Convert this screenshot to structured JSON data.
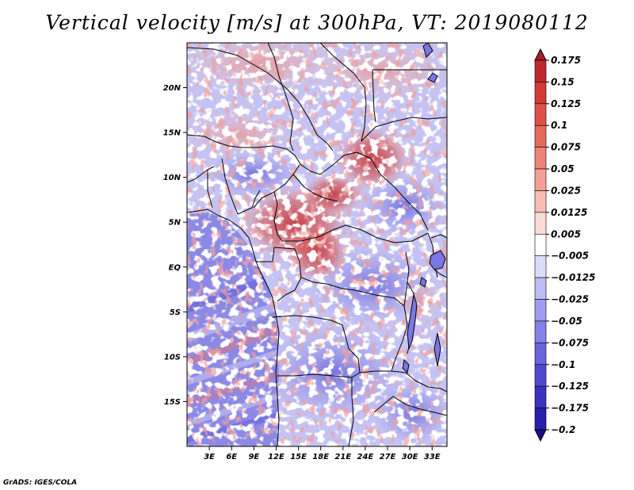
{
  "title": "Vertical velocity [m/s] at 300hPa, VT: 2019080112",
  "credit": "GrADS: IGES/COLA",
  "map": {
    "variable": "Vertical velocity",
    "units": "m/s",
    "level": "300hPa",
    "valid_time": "2019080112",
    "lon_range_deg": [
      0,
      35
    ],
    "lat_range_deg": [
      -20,
      25
    ],
    "lat_ticks": [
      {
        "label": "20N",
        "lat": 20
      },
      {
        "label": "15N",
        "lat": 15
      },
      {
        "label": "10N",
        "lat": 10
      },
      {
        "label": "5N",
        "lat": 5
      },
      {
        "label": "EQ",
        "lat": 0
      },
      {
        "label": "5S",
        "lat": -5
      },
      {
        "label": "10S",
        "lat": -10
      },
      {
        "label": "15S",
        "lat": -15
      }
    ],
    "lon_ticks": [
      {
        "label": "3E",
        "lon": 3
      },
      {
        "label": "6E",
        "lon": 6
      },
      {
        "label": "9E",
        "lon": 9
      },
      {
        "label": "12E",
        "lon": 12
      },
      {
        "label": "15E",
        "lon": 15
      },
      {
        "label": "18E",
        "lon": 18
      },
      {
        "label": "21E",
        "lon": 21
      },
      {
        "label": "24E",
        "lon": 24
      },
      {
        "label": "27E",
        "lon": 27
      },
      {
        "label": "30E",
        "lon": 30
      },
      {
        "label": "33E",
        "lon": 33
      }
    ]
  },
  "colorbar": {
    "labels": [
      "0.175",
      "0.15",
      "0.125",
      "0.1",
      "0.075",
      "0.05",
      "0.025",
      "0.0125",
      "0.005",
      "−0.005",
      "−0.0125",
      "−0.025",
      "−0.05",
      "−0.075",
      "−0.1",
      "−0.125",
      "−0.175",
      "−0.2"
    ],
    "colors": [
      "#a81f25",
      "#c0292b",
      "#d13b36",
      "#dd5248",
      "#e6695e",
      "#ee8377",
      "#f4a094",
      "#f8bdb3",
      "#fbdbd5",
      "#ffffff",
      "#dcdcfa",
      "#bcbcf5",
      "#9f9df0",
      "#8481e8",
      "#6a64dd",
      "#5049cf",
      "#3a32bf",
      "#2620aa",
      "#170f8c"
    ]
  },
  "colors": {
    "ocean_blue": "#8f8de9",
    "land_base": "#c3c2f2",
    "updraft_red": "#c62a2a",
    "border": "#000000"
  }
}
